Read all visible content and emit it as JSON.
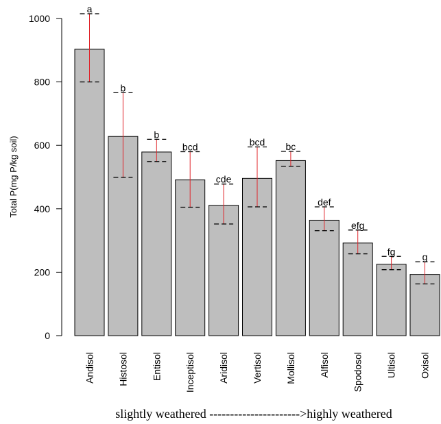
{
  "chart_data": {
    "type": "bar",
    "ylabel": "Total P(mg P/kg soil)",
    "xlabel": "slightly weathered ---------------------->highly weathered",
    "ylim": [
      0,
      1000
    ],
    "yticks": [
      0,
      200,
      400,
      600,
      800,
      1000
    ],
    "grid": false,
    "categories": [
      "Andisol",
      "Histosol",
      "Entisol",
      "Inceptisol",
      "Aridisol",
      "Vertisol",
      "Mollisol",
      "Alfisol",
      "Spodosol",
      "Ultisol",
      "Oxisol"
    ],
    "values": [
      903,
      628,
      579,
      491,
      411,
      496,
      552,
      364,
      292,
      225,
      193
    ],
    "error_low": [
      800,
      499,
      549,
      405,
      352,
      406,
      534,
      331,
      258,
      208,
      163
    ],
    "error_high": [
      1015,
      766,
      619,
      580,
      478,
      595,
      581,
      406,
      333,
      250,
      233
    ],
    "group_labels": [
      "a",
      "b",
      "b",
      "bcd",
      "cde",
      "bcd",
      "bc",
      "def",
      "efg",
      "fg",
      "g"
    ],
    "colors": {
      "bar": "#bebebe",
      "bar_border": "#000000",
      "error_bar": "#e0242a"
    }
  }
}
